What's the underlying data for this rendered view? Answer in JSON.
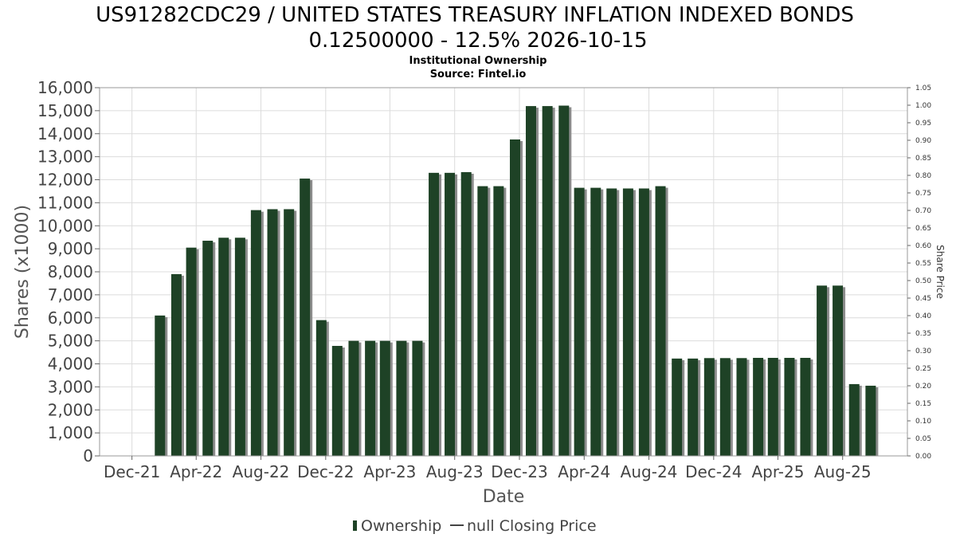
{
  "chart_data": {
    "type": "bar",
    "title_lines": [
      "US91282CDC29 / UNITED STATES TREASURY INFLATION INDEXED BONDS",
      "0.12500000 - 12.5% 2026-10-15"
    ],
    "subtitle": "Institutional Ownership",
    "source": "Source: Fintel.io",
    "xlabel": "Date",
    "ylabel": "Shares (x1000)",
    "y2label": "Share Price",
    "ylim": [
      0,
      16000
    ],
    "y2lim": [
      0,
      1.05
    ],
    "yticks": [
      "0",
      "1,000",
      "2,000",
      "3,000",
      "4,000",
      "5,000",
      "6,000",
      "7,000",
      "8,000",
      "9,000",
      "10,000",
      "11,000",
      "12,000",
      "13,000",
      "14,000",
      "15,000",
      "16,000"
    ],
    "y2ticks": [
      "0.00",
      "0.05",
      "0.10",
      "0.15",
      "0.20",
      "0.25",
      "0.30",
      "0.35",
      "0.40",
      "0.45",
      "0.50",
      "0.55",
      "0.60",
      "0.65",
      "0.70",
      "0.75",
      "0.80",
      "0.85",
      "0.90",
      "0.95",
      "1.00",
      "1.05"
    ],
    "xticks": [
      "Dec-21",
      "Apr-22",
      "Aug-22",
      "Dec-22",
      "Apr-23",
      "Aug-23",
      "Dec-23",
      "Apr-24",
      "Aug-24",
      "Dec-24",
      "Apr-25",
      "Aug-25"
    ],
    "x_range": [
      "2021-10-01",
      "2025-12-01"
    ],
    "bars": [
      {
        "date": "2022-01-01",
        "value": 6100
      },
      {
        "date": "2022-02-01",
        "value": 7900
      },
      {
        "date": "2022-03-01",
        "value": 9050
      },
      {
        "date": "2022-04-01",
        "value": 9350
      },
      {
        "date": "2022-05-01",
        "value": 9480
      },
      {
        "date": "2022-06-01",
        "value": 9480
      },
      {
        "date": "2022-07-01",
        "value": 10680
      },
      {
        "date": "2022-08-01",
        "value": 10720
      },
      {
        "date": "2022-09-01",
        "value": 10720
      },
      {
        "date": "2022-10-01",
        "value": 12050
      },
      {
        "date": "2022-11-01",
        "value": 5900
      },
      {
        "date": "2022-12-01",
        "value": 4780
      },
      {
        "date": "2023-01-01",
        "value": 5000
      },
      {
        "date": "2023-02-01",
        "value": 5000
      },
      {
        "date": "2023-03-01",
        "value": 5000
      },
      {
        "date": "2023-04-01",
        "value": 5000
      },
      {
        "date": "2023-05-01",
        "value": 5000
      },
      {
        "date": "2023-06-01",
        "value": 12300
      },
      {
        "date": "2023-07-01",
        "value": 12300
      },
      {
        "date": "2023-08-01",
        "value": 12330
      },
      {
        "date": "2023-09-01",
        "value": 11720
      },
      {
        "date": "2023-10-01",
        "value": 11720
      },
      {
        "date": "2023-11-01",
        "value": 13750
      },
      {
        "date": "2023-12-01",
        "value": 15200
      },
      {
        "date": "2024-01-01",
        "value": 15200
      },
      {
        "date": "2024-02-01",
        "value": 15220
      },
      {
        "date": "2024-03-01",
        "value": 11650
      },
      {
        "date": "2024-04-01",
        "value": 11650
      },
      {
        "date": "2024-05-01",
        "value": 11620
      },
      {
        "date": "2024-06-01",
        "value": 11620
      },
      {
        "date": "2024-07-01",
        "value": 11620
      },
      {
        "date": "2024-08-01",
        "value": 11720
      },
      {
        "date": "2024-09-01",
        "value": 4230
      },
      {
        "date": "2024-10-01",
        "value": 4230
      },
      {
        "date": "2024-11-01",
        "value": 4250
      },
      {
        "date": "2024-12-01",
        "value": 4250
      },
      {
        "date": "2025-01-01",
        "value": 4250
      },
      {
        "date": "2025-02-01",
        "value": 4260
      },
      {
        "date": "2025-03-01",
        "value": 4260
      },
      {
        "date": "2025-04-01",
        "value": 4260
      },
      {
        "date": "2025-05-01",
        "value": 4260
      },
      {
        "date": "2025-06-01",
        "value": 7400
      },
      {
        "date": "2025-07-01",
        "value": 7400
      },
      {
        "date": "2025-08-01",
        "value": 3120
      },
      {
        "date": "2025-09-01",
        "value": 3050
      }
    ],
    "series_color": "#1e4226",
    "shadow_color": "#8c8c8c",
    "legend_position": "bottom-center",
    "legend": [
      {
        "label": "Ownership",
        "type": "bar"
      },
      {
        "label": "null Closing Price",
        "type": "line"
      }
    ],
    "grid": true
  }
}
